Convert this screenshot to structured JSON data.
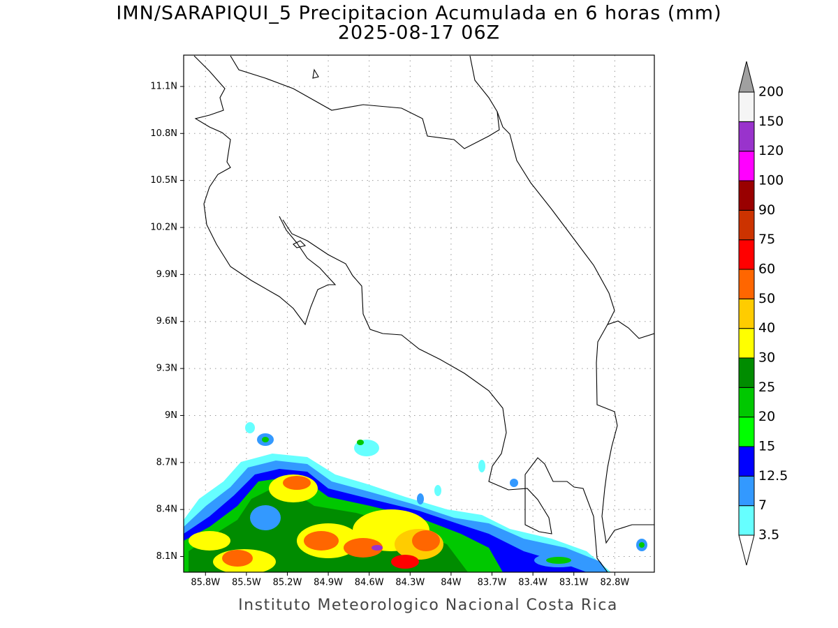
{
  "title": "IMN/SARAPIQUI_5 Precipitacion Acumulada en 6 horas (mm)",
  "subtitle": "2025-08-17 06Z",
  "footer": "Instituto Meteorologico Nacional Costa Rica",
  "map": {
    "xlim": [
      -85.96,
      -82.51
    ],
    "ylim": [
      8.0,
      11.3
    ],
    "xticks": [
      {
        "value": -85.8,
        "label": "85.8W"
      },
      {
        "value": -85.5,
        "label": "85.5W"
      },
      {
        "value": -85.2,
        "label": "85.2W"
      },
      {
        "value": -84.9,
        "label": "84.9W"
      },
      {
        "value": -84.6,
        "label": "84.6W"
      },
      {
        "value": -84.3,
        "label": "84.3W"
      },
      {
        "value": -84,
        "label": "84W"
      },
      {
        "value": -83.7,
        "label": "83.7W"
      },
      {
        "value": -83.4,
        "label": "83.4W"
      },
      {
        "value": -83.1,
        "label": "83.1W"
      },
      {
        "value": -82.8,
        "label": "82.8W"
      }
    ],
    "yticks": [
      {
        "value": 8.1,
        "label": "8.1N"
      },
      {
        "value": 8.4,
        "label": "8.4N"
      },
      {
        "value": 8.7,
        "label": "8.7N"
      },
      {
        "value": 9,
        "label": "9N"
      },
      {
        "value": 9.3,
        "label": "9.3N"
      },
      {
        "value": 9.6,
        "label": "9.6N"
      },
      {
        "value": 9.9,
        "label": "9.9N"
      },
      {
        "value": 10.2,
        "label": "10.2N"
      },
      {
        "value": 10.5,
        "label": "10.5N"
      },
      {
        "value": 10.8,
        "label": "10.8N"
      },
      {
        "value": 11.1,
        "label": "11.1N"
      }
    ],
    "grid": true
  },
  "colorbar": {
    "levels": [
      3.5,
      7,
      12.5,
      15,
      20,
      25,
      30,
      40,
      50,
      60,
      75,
      90,
      100,
      120,
      150,
      200
    ],
    "below_color": "#ffffff",
    "colors": [
      "#66ffff",
      "#3399ff",
      "#0000ff",
      "#00ff00",
      "#00c800",
      "#008c00",
      "#ffff00",
      "#ffcc00",
      "#ff6600",
      "#ff0000",
      "#cc3300",
      "#990000",
      "#ff00ff",
      "#9933cc",
      "#f5f5f5"
    ],
    "above_color": "#a0a0a0"
  }
}
